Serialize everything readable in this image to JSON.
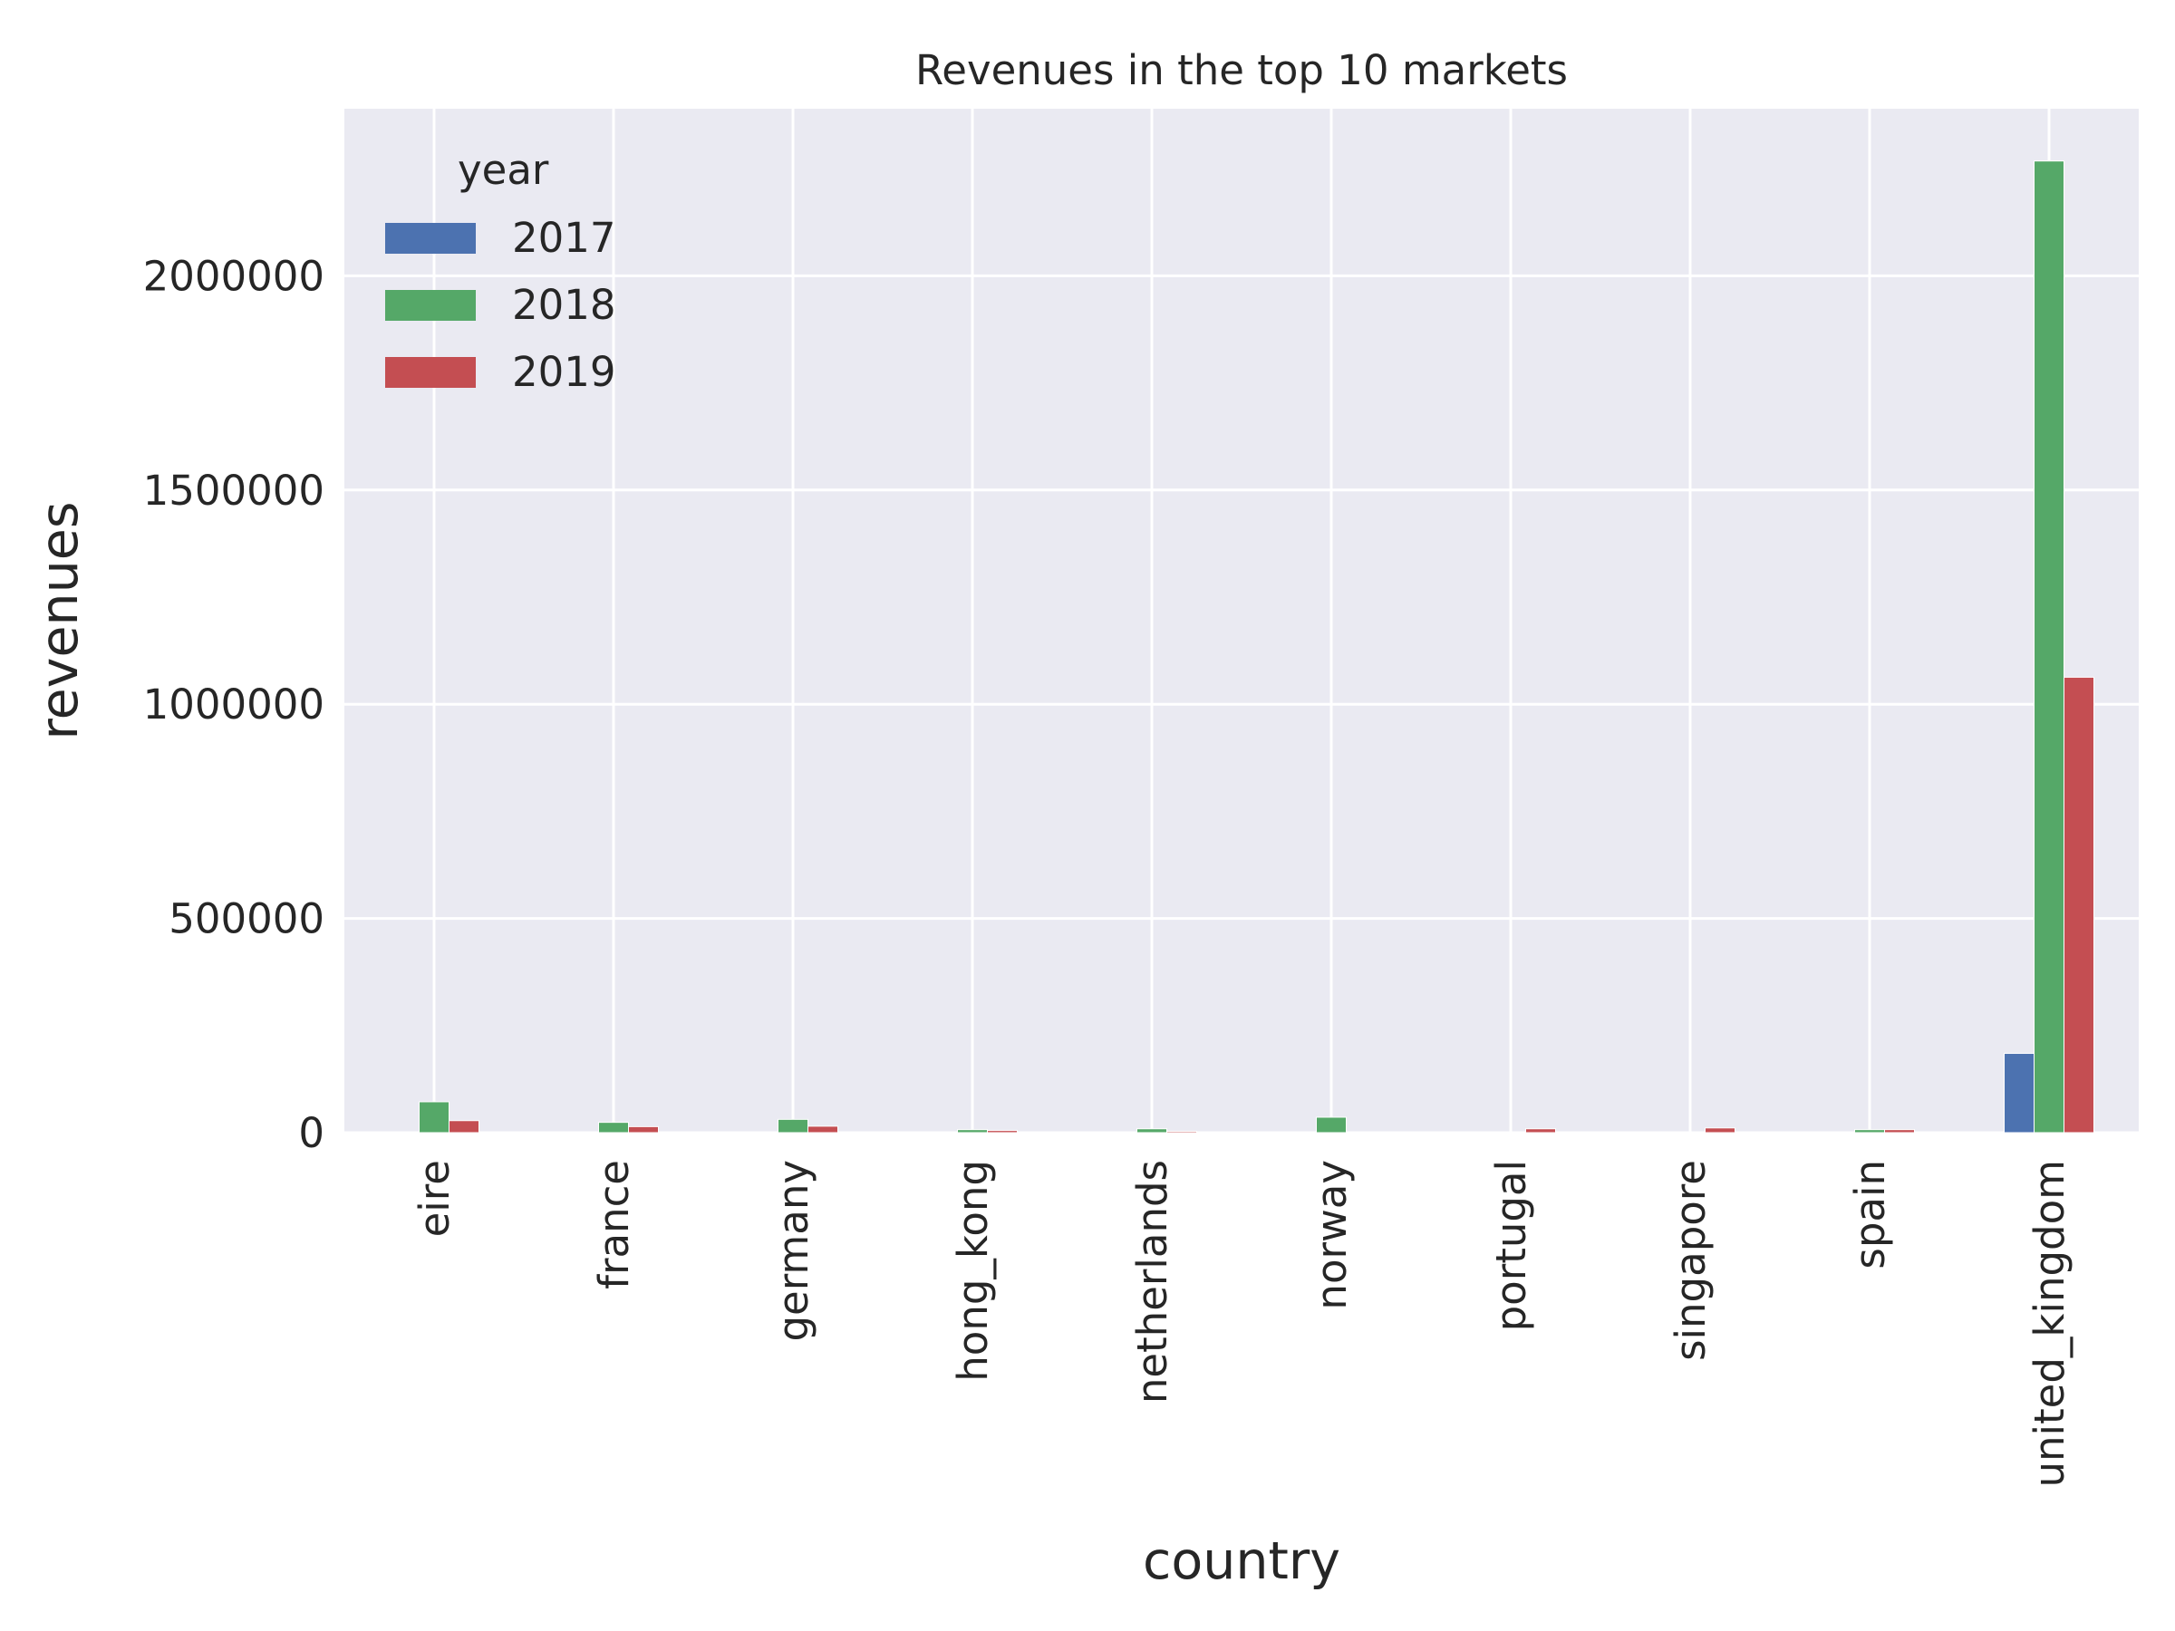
{
  "chart_data": {
    "type": "bar",
    "title": "Revenues in the top 10 markets",
    "xlabel": "country",
    "ylabel": "revenues",
    "ylim": [
      0,
      2390000
    ],
    "yticks": [
      0,
      500000,
      1000000,
      1500000,
      2000000
    ],
    "ytick_labels": [
      "0",
      "500000",
      "1000000",
      "1500000",
      "2000000"
    ],
    "grid": true,
    "categories": [
      "eire",
      "france",
      "germany",
      "hong_kong",
      "netherlands",
      "norway",
      "portugal",
      "singapore",
      "spain",
      "united_kingdom"
    ],
    "legend": {
      "title": "year",
      "placement": "top-left"
    },
    "series": [
      {
        "name": "2017",
        "color": "#4c72b0",
        "values": [
          2000,
          0,
          0,
          0,
          0,
          0,
          0,
          0,
          0,
          185000
        ]
      },
      {
        "name": "2018",
        "color": "#55a868",
        "values": [
          72000,
          24000,
          31000,
          7000,
          9000,
          36000,
          2000,
          0,
          7000,
          2268000
        ]
      },
      {
        "name": "2019",
        "color": "#c44e52",
        "values": [
          28000,
          14000,
          15000,
          5000,
          3000,
          2000,
          9000,
          11000,
          7000,
          1063000
        ]
      }
    ]
  }
}
